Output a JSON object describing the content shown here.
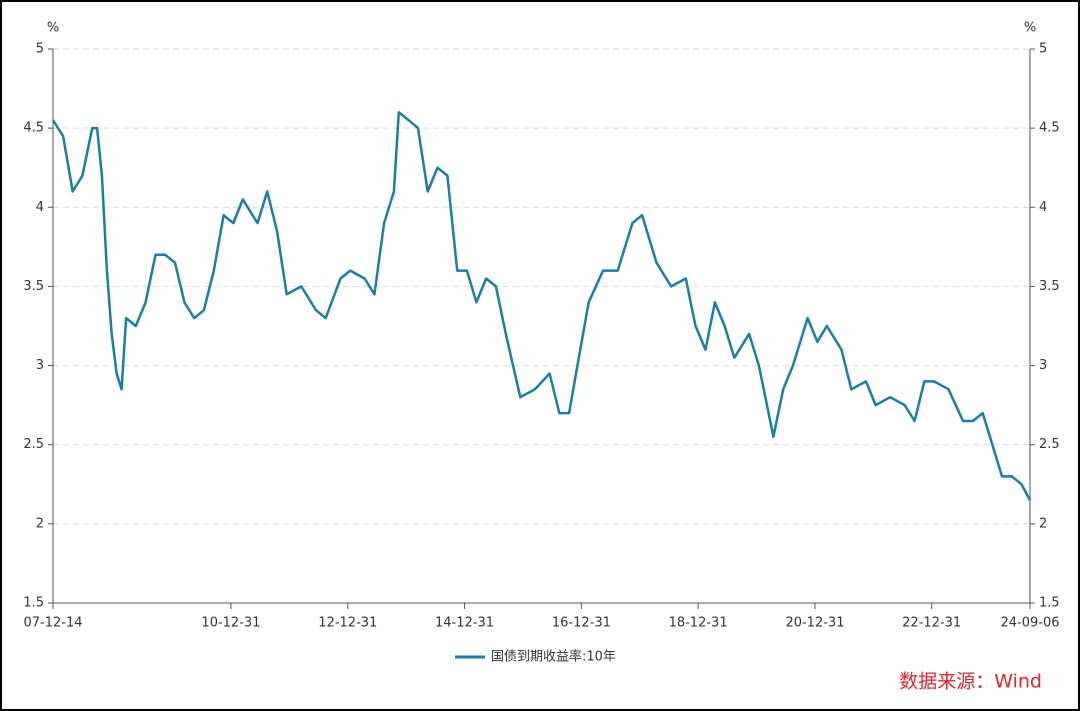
{
  "chart_data": {
    "type": "line",
    "y_unit": "%",
    "y2_unit": "%",
    "xlim": [
      "2007-12-14",
      "2024-09-06"
    ],
    "xticks": [
      {
        "value": "2007-12-14",
        "label": "07-12-14"
      },
      {
        "value": "2010-12-31",
        "label": "10-12-31"
      },
      {
        "value": "2012-12-31",
        "label": "12-12-31"
      },
      {
        "value": "2014-12-31",
        "label": "14-12-31"
      },
      {
        "value": "2016-12-31",
        "label": "16-12-31"
      },
      {
        "value": "2018-12-31",
        "label": "18-12-31"
      },
      {
        "value": "2020-12-31",
        "label": "20-12-31"
      },
      {
        "value": "2022-12-31",
        "label": "22-12-31"
      },
      {
        "value": "2024-09-06",
        "label": "24-09-06"
      }
    ],
    "ylim": [
      1.5,
      5
    ],
    "yticks": [
      1.5,
      2,
      2.5,
      3,
      3.5,
      4,
      4.5,
      5
    ],
    "y2lim": [
      1.5,
      5
    ],
    "y2ticks": [
      1.5,
      2,
      2.5,
      3,
      3.5,
      4,
      4.5,
      5
    ],
    "grid": true,
    "legend": "bottom",
    "source": "数据来源：Wind",
    "x": [
      "2007-12-14",
      "2008-02",
      "2008-04",
      "2008-06",
      "2008-08",
      "2008-09",
      "2008-10",
      "2008-11",
      "2008-12",
      "2009-01",
      "2009-02",
      "2009-03",
      "2009-05",
      "2009-07",
      "2009-09",
      "2009-11",
      "2010-01",
      "2010-03",
      "2010-05",
      "2010-07",
      "2010-09",
      "2010-11",
      "2011-01",
      "2011-03",
      "2011-06",
      "2011-08",
      "2011-10",
      "2011-12",
      "2012-03",
      "2012-06",
      "2012-08",
      "2012-11",
      "2013-01",
      "2013-04",
      "2013-06",
      "2013-08",
      "2013-10",
      "2013-11",
      "2014-01",
      "2014-03",
      "2014-05",
      "2014-07",
      "2014-09",
      "2014-11",
      "2015-01",
      "2015-03",
      "2015-05",
      "2015-07",
      "2015-09",
      "2015-12",
      "2016-03",
      "2016-06",
      "2016-08",
      "2016-10",
      "2016-12",
      "2017-02",
      "2017-05",
      "2017-08",
      "2017-11",
      "2018-01",
      "2018-04",
      "2018-07",
      "2018-10",
      "2018-12",
      "2019-02",
      "2019-04",
      "2019-06",
      "2019-08",
      "2019-11",
      "2020-01",
      "2020-04",
      "2020-06",
      "2020-08",
      "2020-11",
      "2021-01",
      "2021-03",
      "2021-06",
      "2021-08",
      "2021-11",
      "2022-01",
      "2022-04",
      "2022-07",
      "2022-09",
      "2022-11",
      "2023-01",
      "2023-04",
      "2023-07",
      "2023-09",
      "2023-11",
      "2024-01",
      "2024-03",
      "2024-05",
      "2024-07",
      "2024-09-06"
    ],
    "series": [
      {
        "name": "国债到期收益率:10年",
        "color": "#1580a8",
        "values": [
          4.55,
          4.45,
          4.1,
          4.2,
          4.5,
          4.5,
          4.2,
          3.6,
          3.2,
          2.95,
          2.85,
          3.3,
          3.25,
          3.4,
          3.7,
          3.7,
          3.65,
          3.4,
          3.3,
          3.35,
          3.6,
          3.95,
          3.9,
          4.05,
          3.9,
          4.1,
          3.85,
          3.45,
          3.5,
          3.35,
          3.3,
          3.55,
          3.6,
          3.55,
          3.45,
          3.9,
          4.1,
          4.6,
          4.55,
          4.5,
          4.1,
          4.25,
          4.2,
          3.6,
          3.6,
          3.4,
          3.55,
          3.5,
          3.2,
          2.8,
          2.85,
          2.95,
          2.7,
          2.7,
          3.05,
          3.4,
          3.6,
          3.6,
          3.9,
          3.95,
          3.65,
          3.5,
          3.55,
          3.25,
          3.1,
          3.4,
          3.25,
          3.05,
          3.2,
          3.0,
          2.55,
          2.85,
          3.0,
          3.3,
          3.15,
          3.25,
          3.1,
          2.85,
          2.9,
          2.75,
          2.8,
          2.75,
          2.65,
          2.9,
          2.9,
          2.85,
          2.65,
          2.65,
          2.7,
          2.5,
          2.3,
          2.3,
          2.25,
          2.15
        ]
      }
    ]
  }
}
